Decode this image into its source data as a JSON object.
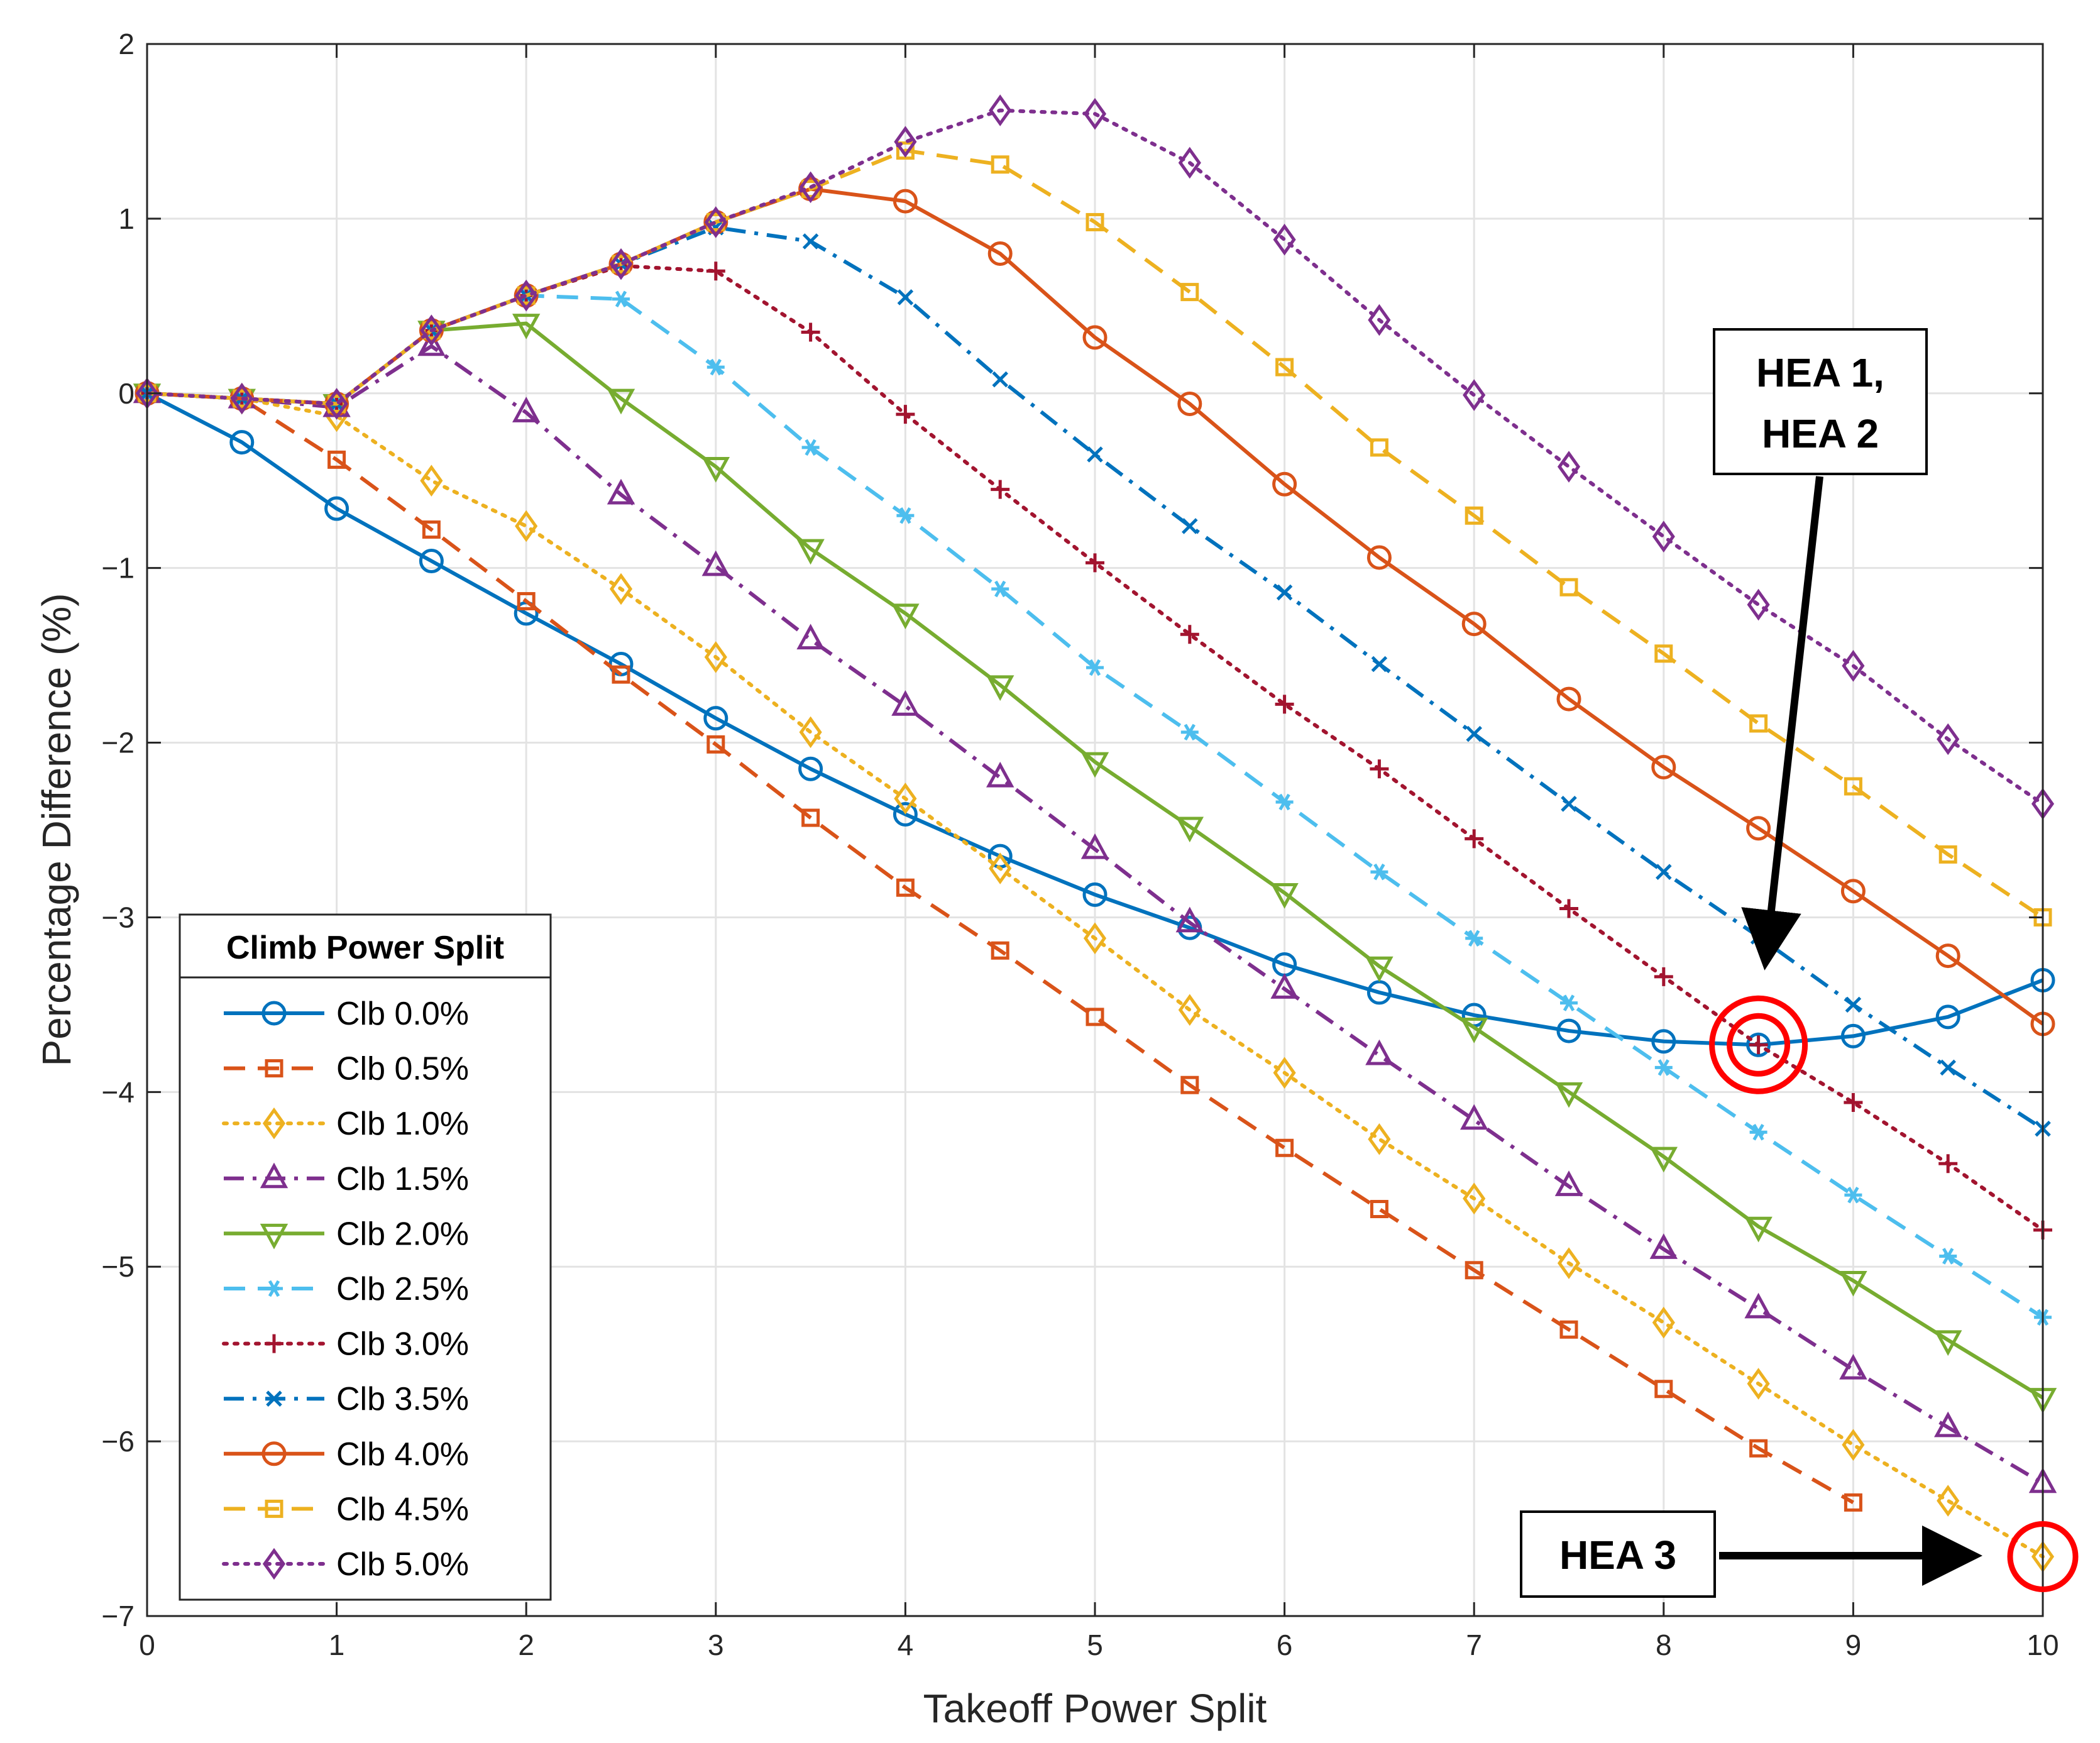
{
  "chart_data": {
    "type": "line",
    "title": "",
    "xlabel": "Takeoff Power Split",
    "ylabel": "Percentage Difference (%)",
    "xlim": [
      0,
      10
    ],
    "ylim": [
      -7,
      2
    ],
    "grid": true,
    "x": [
      0,
      0.5,
      1,
      1.5,
      2,
      2.5,
      3,
      3.5,
      4,
      4.5,
      5,
      5.5,
      6,
      6.5,
      7,
      7.5,
      8,
      8.5,
      9,
      9.5,
      10
    ],
    "xticks": [
      "0",
      "1",
      "2",
      "3",
      "4",
      "5",
      "6",
      "7",
      "8",
      "9",
      "10"
    ],
    "yticks": [
      "2",
      "1",
      "0",
      "−1",
      "−2",
      "−3",
      "−4",
      "−5",
      "−6",
      "−7"
    ],
    "legend": {
      "title": "Climb Power Split",
      "location": "lower-left"
    },
    "series": [
      {
        "name": "Clb 0.0%",
        "color": "#0072BD",
        "marker": "circle",
        "dash": "solid",
        "values": [
          0,
          -0.28,
          -0.66,
          -0.96,
          -1.26,
          -1.55,
          -1.86,
          -2.15,
          -2.41,
          -2.65,
          -2.87,
          -3.06,
          -3.27,
          -3.43,
          -3.56,
          -3.65,
          -3.71,
          -3.73,
          -3.68,
          -3.57,
          -3.36
        ]
      },
      {
        "name": "Clb 0.5%",
        "color": "#D95319",
        "marker": "square",
        "dash": "dashed",
        "values": [
          0,
          -0.03,
          -0.38,
          -0.78,
          -1.19,
          -1.61,
          -2.01,
          -2.43,
          -2.83,
          -3.19,
          -3.57,
          -3.96,
          -4.32,
          -4.67,
          -5.02,
          -5.36,
          -5.7,
          -6.04,
          -6.35,
          null,
          null
        ]
      },
      {
        "name": "Clb 1.0%",
        "color": "#EDB120",
        "marker": "diamond",
        "dash": "dotted",
        "values": [
          0,
          -0.03,
          -0.13,
          -0.5,
          -0.76,
          -1.12,
          -1.51,
          -1.94,
          -2.32,
          -2.72,
          -3.12,
          -3.53,
          -3.89,
          -4.27,
          -4.61,
          -4.98,
          -5.32,
          -5.67,
          -6.02,
          -6.34,
          -6.66
        ]
      },
      {
        "name": "Clb 1.5%",
        "color": "#7E2F8E",
        "marker": "triangle-up",
        "dash": "dashdot",
        "values": [
          0,
          -0.03,
          -0.08,
          0.27,
          -0.11,
          -0.58,
          -0.99,
          -1.41,
          -1.79,
          -2.2,
          -2.61,
          -3.03,
          -3.41,
          -3.79,
          -4.16,
          -4.54,
          -4.9,
          -5.24,
          -5.59,
          -5.92,
          -6.24
        ]
      },
      {
        "name": "Clb 2.0%",
        "color": "#77AC30",
        "marker": "triangle-down",
        "dash": "solid",
        "values": [
          0,
          -0.03,
          -0.06,
          0.36,
          0.4,
          -0.03,
          -0.42,
          -0.89,
          -1.26,
          -1.67,
          -2.11,
          -2.48,
          -2.86,
          -3.28,
          -3.63,
          -4.0,
          -4.37,
          -4.77,
          -5.08,
          -5.42,
          -5.75
        ]
      },
      {
        "name": "Clb 2.5%",
        "color": "#4DBEEE",
        "marker": "asterisk",
        "dash": "dashed",
        "values": [
          0,
          -0.03,
          -0.06,
          0.36,
          0.56,
          0.54,
          0.15,
          -0.31,
          -0.7,
          -1.12,
          -1.57,
          -1.94,
          -2.34,
          -2.74,
          -3.12,
          -3.49,
          -3.86,
          -4.23,
          -4.59,
          -4.94,
          -5.29
        ]
      },
      {
        "name": "Clb 3.0%",
        "color": "#A2142F",
        "marker": "plus",
        "dash": "dotted",
        "values": [
          0,
          -0.03,
          -0.06,
          0.36,
          0.56,
          0.73,
          0.7,
          0.35,
          -0.12,
          -0.55,
          -0.97,
          -1.38,
          -1.78,
          -2.15,
          -2.55,
          -2.95,
          -3.34,
          -3.73,
          -4.06,
          -4.41,
          -4.79
        ]
      },
      {
        "name": "Clb 3.5%",
        "color": "#0072BD",
        "marker": "x",
        "dash": "dashdot",
        "values": [
          0,
          -0.03,
          -0.06,
          0.36,
          0.56,
          0.74,
          0.95,
          0.87,
          0.55,
          0.08,
          -0.35,
          -0.76,
          -1.14,
          -1.55,
          -1.95,
          -2.35,
          -2.74,
          -3.11,
          -3.5,
          -3.86,
          -4.21
        ]
      },
      {
        "name": "Clb 4.0%",
        "color": "#D95319",
        "marker": "circle",
        "dash": "solid",
        "values": [
          0,
          -0.03,
          -0.06,
          0.36,
          0.56,
          0.74,
          0.98,
          1.17,
          1.1,
          0.8,
          0.32,
          -0.06,
          -0.52,
          -0.94,
          -1.32,
          -1.75,
          -2.14,
          -2.49,
          -2.85,
          -3.22,
          -3.61
        ]
      },
      {
        "name": "Clb 4.5%",
        "color": "#EDB120",
        "marker": "square",
        "dash": "dashed",
        "values": [
          0,
          -0.03,
          -0.06,
          0.36,
          0.56,
          0.74,
          0.98,
          1.17,
          1.39,
          1.31,
          0.98,
          0.58,
          0.15,
          -0.31,
          -0.7,
          -1.11,
          -1.49,
          -1.89,
          -2.25,
          -2.64,
          -3.0
        ]
      },
      {
        "name": "Clb 5.0%",
        "color": "#7E2F8E",
        "marker": "diamond",
        "dash": "dotted",
        "values": [
          0,
          -0.03,
          -0.06,
          0.36,
          0.56,
          0.74,
          0.98,
          1.18,
          1.44,
          1.62,
          1.6,
          1.32,
          0.88,
          0.42,
          -0.01,
          -0.42,
          -0.82,
          -1.21,
          -1.56,
          -1.98,
          -2.35
        ]
      }
    ],
    "annotations": [
      {
        "label": "HEA 1,",
        "label2": "HEA 2",
        "x": 8.5,
        "y": -3.73,
        "arrow_from": "above"
      },
      {
        "label": "HEA 3",
        "x": 10,
        "y": -6.66,
        "arrow_from": "left"
      }
    ]
  }
}
